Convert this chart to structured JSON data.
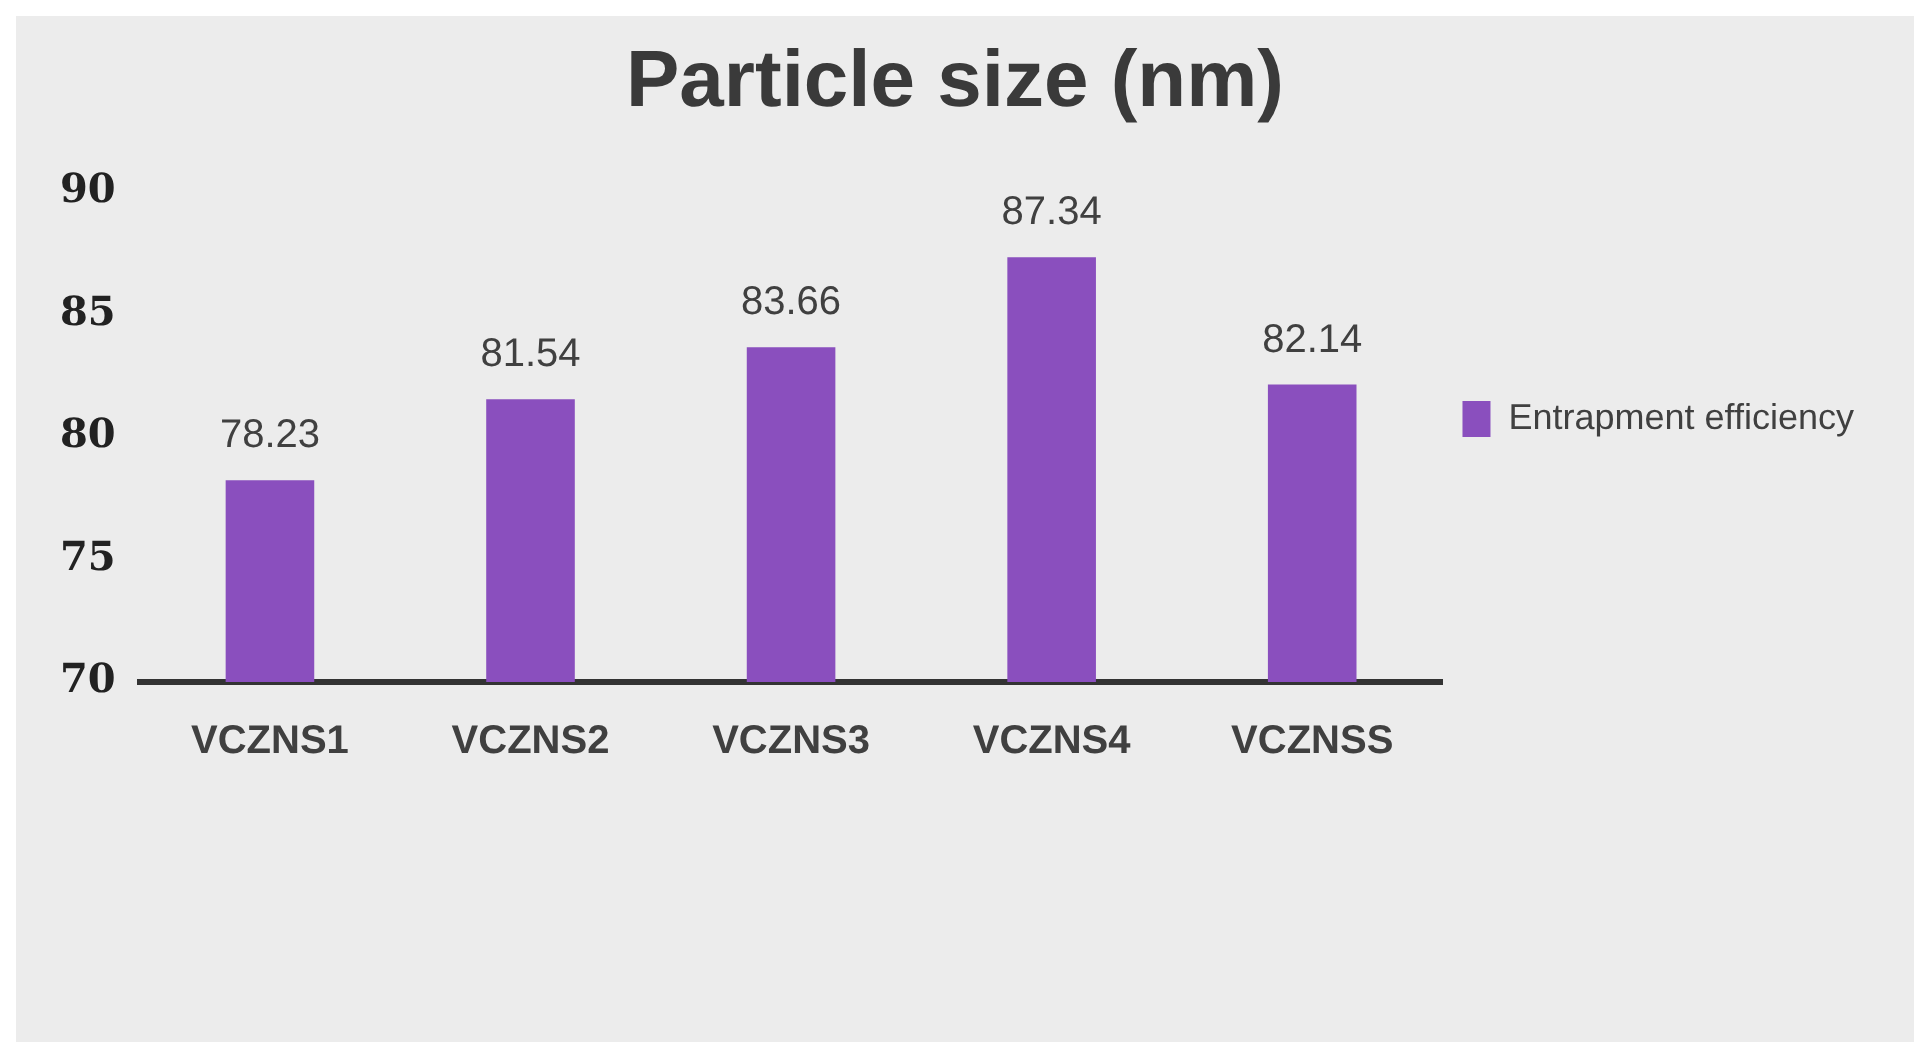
{
  "chart_data": {
    "type": "bar",
    "title": "Particle size (nm)",
    "categories": [
      "VCZNS1",
      "VCZNS2",
      "VCZNS3",
      "VCZNS4",
      "VCZNSS"
    ],
    "series": [
      {
        "name": "Entrapment efficiency",
        "color": "#8a4fbe",
        "values": [
          78.23,
          81.54,
          83.66,
          87.34,
          82.14
        ]
      }
    ],
    "ylim": [
      70,
      90
    ],
    "yticks": [
      70,
      75,
      80,
      85,
      90
    ],
    "grid": false,
    "legend": "right",
    "data_labels": true
  }
}
